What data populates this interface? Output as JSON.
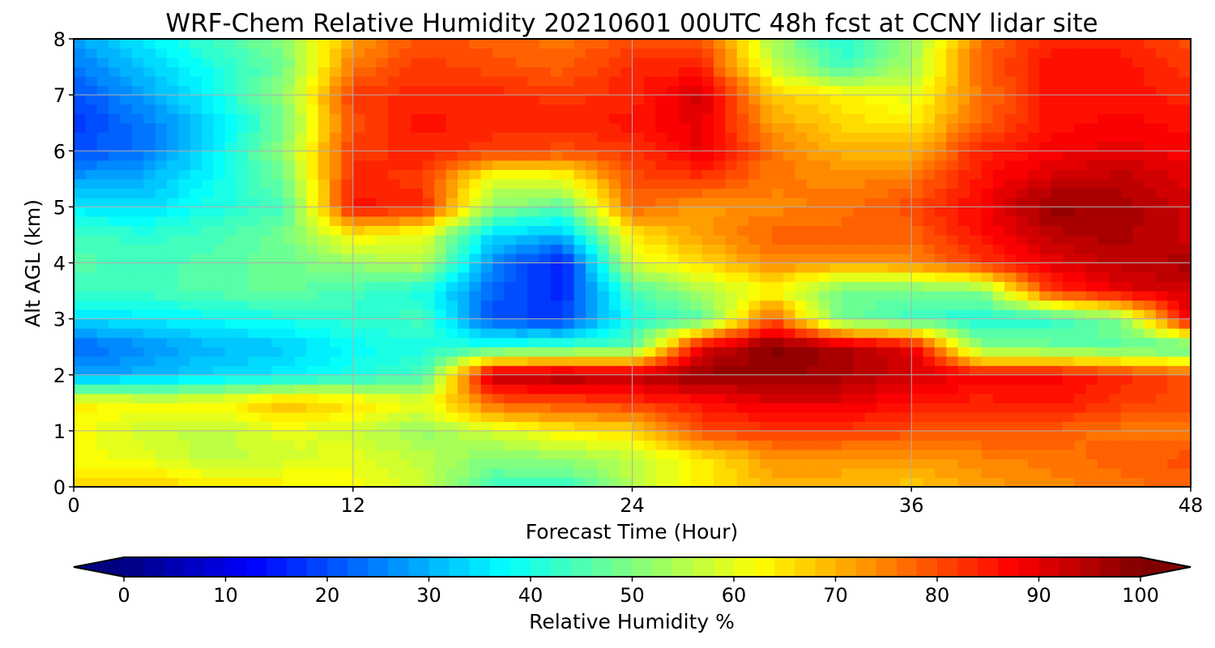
{
  "chart_data": {
    "type": "heatmap",
    "title": "WRF-Chem Relative Humidity 20210601 00UTC 48h fcst at CCNY lidar site",
    "xlabel": "Forecast Time (Hour)",
    "ylabel": "Alt AGL (km)",
    "x_ticks": [
      0,
      12,
      24,
      36,
      48
    ],
    "y_ticks": [
      0,
      1,
      2,
      3,
      4,
      5,
      6,
      7,
      8
    ],
    "xlim": [
      0,
      48
    ],
    "ylim": [
      0,
      8
    ],
    "grid": true,
    "colorbar": {
      "label": "Relative Humidity %",
      "ticks": [
        0,
        10,
        20,
        30,
        40,
        50,
        60,
        70,
        80,
        90,
        100
      ],
      "range": [
        0,
        100
      ],
      "colormap": "jet",
      "extend": "both",
      "orientation": "horizontal",
      "placement": "bottom"
    },
    "x_hours": [
      0,
      3,
      6,
      9,
      12,
      15,
      18,
      21,
      24,
      27,
      30,
      33,
      36,
      39,
      42,
      45,
      48
    ],
    "y_km": [
      0,
      0.5,
      1,
      1.5,
      2,
      2.5,
      3,
      3.5,
      4,
      4.5,
      5,
      5.5,
      6,
      6.5,
      7,
      7.5,
      8
    ],
    "rh_values": [
      [
        66,
        68,
        65,
        64,
        62,
        58,
        44,
        42,
        56,
        64,
        70,
        70,
        68,
        72,
        74,
        76,
        78
      ],
      [
        62,
        60,
        56,
        58,
        60,
        56,
        50,
        52,
        56,
        64,
        72,
        72,
        72,
        74,
        76,
        78,
        80
      ],
      [
        62,
        58,
        56,
        60,
        58,
        52,
        58,
        64,
        66,
        80,
        82,
        82,
        80,
        80,
        78,
        76,
        76
      ],
      [
        64,
        62,
        62,
        70,
        66,
        60,
        78,
        80,
        82,
        86,
        90,
        90,
        86,
        84,
        86,
        82,
        80
      ],
      [
        28,
        30,
        34,
        36,
        40,
        44,
        94,
        96,
        94,
        98,
        98,
        96,
        92,
        88,
        88,
        84,
        80
      ],
      [
        22,
        26,
        30,
        32,
        38,
        40,
        42,
        44,
        46,
        90,
        100,
        96,
        90,
        50,
        48,
        46,
        44
      ],
      [
        34,
        36,
        38,
        40,
        42,
        44,
        20,
        18,
        40,
        46,
        80,
        48,
        44,
        40,
        42,
        50,
        90
      ],
      [
        44,
        44,
        46,
        48,
        44,
        40,
        22,
        16,
        44,
        54,
        62,
        48,
        48,
        50,
        82,
        90,
        92
      ],
      [
        46,
        44,
        46,
        48,
        52,
        56,
        26,
        14,
        58,
        66,
        74,
        72,
        74,
        82,
        90,
        94,
        96
      ],
      [
        44,
        42,
        44,
        48,
        64,
        60,
        34,
        30,
        64,
        72,
        78,
        78,
        78,
        86,
        94,
        96,
        92
      ],
      [
        36,
        34,
        40,
        44,
        86,
        84,
        52,
        46,
        78,
        72,
        74,
        76,
        80,
        88,
        98,
        96,
        92
      ],
      [
        28,
        30,
        38,
        48,
        84,
        82,
        58,
        60,
        80,
        82,
        76,
        74,
        76,
        86,
        92,
        94,
        90
      ],
      [
        20,
        24,
        36,
        52,
        82,
        84,
        82,
        80,
        82,
        90,
        76,
        70,
        70,
        84,
        88,
        90,
        88
      ],
      [
        18,
        24,
        34,
        48,
        80,
        86,
        84,
        84,
        86,
        90,
        72,
        66,
        64,
        78,
        86,
        88,
        86
      ],
      [
        20,
        28,
        38,
        52,
        82,
        84,
        84,
        82,
        84,
        92,
        68,
        64,
        60,
        76,
        86,
        86,
        84
      ],
      [
        24,
        32,
        40,
        48,
        76,
        82,
        80,
        78,
        84,
        84,
        58,
        44,
        54,
        78,
        86,
        86,
        82
      ],
      [
        28,
        36,
        44,
        50,
        72,
        80,
        78,
        76,
        80,
        80,
        54,
        40,
        52,
        76,
        84,
        84,
        80
      ]
    ]
  }
}
